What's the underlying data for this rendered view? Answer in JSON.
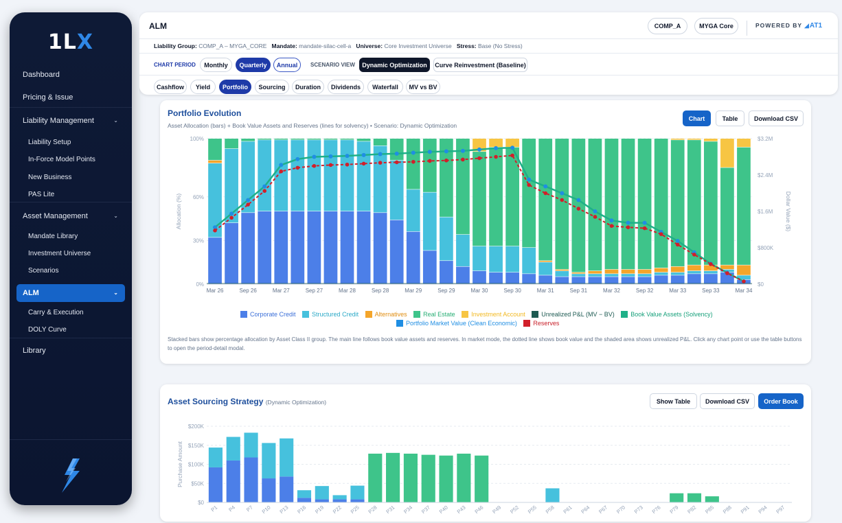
{
  "app": {
    "logo_main": "1L",
    "logo_accent": "X"
  },
  "sidebar": {
    "items": [
      {
        "label": "Dashboard"
      },
      {
        "label": "Pricing & Issue"
      },
      {
        "label": "Liability Management"
      },
      {
        "label": "Liability Setup"
      },
      {
        "label": "In-Force Model Points"
      },
      {
        "label": "New Business"
      },
      {
        "label": "PAS Lite"
      },
      {
        "label": "Asset Management"
      },
      {
        "label": "Mandate Library"
      },
      {
        "label": "Investment Universe"
      },
      {
        "label": "Scenarios"
      },
      {
        "label": "ALM"
      },
      {
        "label": "Carry & Execution"
      },
      {
        "label": "DOLY Curve"
      },
      {
        "label": "Library"
      }
    ],
    "chevron": "⌄"
  },
  "header": {
    "title": "ALM",
    "company_pill": "COMP_A",
    "product_pill": "MYGA Core",
    "powered_by": "POWERED BY",
    "brand": "AT1",
    "liability_group_label": "Liability Group:",
    "liability_group_value": "COMP_A – MYGA_CORE",
    "mandate_label": "Mandate:",
    "mandate_value": "mandate-silac-cell-a",
    "universe_label": "Universe:",
    "universe_value": "Core Investment Universe",
    "stress_label": "Stress:",
    "stress_value": "Base (No Stress)",
    "chart_period_label": "CHART PERIOD",
    "periods": [
      "Monthly",
      "Quarterly",
      "Annual"
    ],
    "active_period": "Quarterly",
    "scenario_view_label": "SCENARIO VIEW",
    "scenarios": [
      "Dynamic Optimization",
      "Curve Reinvestment (Baseline)"
    ],
    "active_scenario": "Dynamic Optimization",
    "tabs": [
      "Cashflow",
      "Yield",
      "Portfolio",
      "Sourcing",
      "Duration",
      "Dividends",
      "Waterfall",
      "MV vs BV"
    ],
    "active_tab": "Portfolio"
  },
  "portfolio_card": {
    "title": "Portfolio Evolution",
    "subtitle": "Asset Allocation (bars) + Book Value Assets and Reserves (lines for solvency) • Scenario: Dynamic Optimization",
    "buttons": {
      "chart": "Chart",
      "table": "Table",
      "csv": "Download CSV"
    },
    "y_left_title": "Allocation (%)",
    "y_right_title": "Dollar Value ($)",
    "note": "Stacked bars show percentage allocation by Asset Class II group. The main line follows book value assets and reserves. In market mode, the dotted line shows book value and the shaded area shows unrealized P&L. Click any chart point or use the table buttons to open the period-detail modal."
  },
  "sourcing_card": {
    "title": "Asset Sourcing Strategy",
    "subtitle": "(Dynamic Optimization)",
    "buttons": {
      "show_table": "Show Table",
      "csv": "Download CSV",
      "order_book": "Order Book"
    },
    "y_title": "Purchase Amount"
  },
  "colors": {
    "corporate": "#4c7fe8",
    "structured": "#46c1dd",
    "alternatives": "#f4a52a",
    "real_estate": "#3ec48a",
    "investment_account": "#f7c543",
    "unrealized": "#1d5a52",
    "book_value": "#1fb088",
    "portfolio_mv": "#1f8ee3",
    "reserves": "#d11f2a",
    "nav_active": "#1664c8",
    "sidebar_bg": "#0e1a36"
  },
  "chart_data": [
    {
      "type": "bar",
      "title": "Portfolio Evolution",
      "xlabel": "",
      "ylabel": "Allocation (%)",
      "y2label": "Dollar Value ($)",
      "ylim": [
        0,
        100
      ],
      "y2lim": [
        0,
        3200000
      ],
      "y_ticks": [
        "0%",
        "30%",
        "60%",
        "100%"
      ],
      "y_tick_values": [
        0,
        30,
        60,
        100
      ],
      "y2_ticks": [
        "$0",
        "$800K",
        "$1.6M",
        "$2.4M",
        "$3.2M"
      ],
      "y2_tick_values": [
        0,
        800000,
        1600000,
        2400000,
        3200000
      ],
      "x_tick_labels": [
        "Mar 26",
        "Sep 26",
        "Mar 27",
        "Sep 27",
        "Mar 28",
        "Sep 28",
        "Mar 29",
        "Sep 29",
        "Mar 30",
        "Sep 30",
        "Mar 31",
        "Sep 31",
        "Mar 32",
        "Sep 32",
        "Mar 33",
        "Sep 33",
        "Mar 34"
      ],
      "categories": [
        "Mar 26",
        "Jun 26",
        "Sep 26",
        "Dec 26",
        "Mar 27",
        "Jun 27",
        "Sep 27",
        "Dec 27",
        "Mar 28",
        "Jun 28",
        "Sep 28",
        "Dec 28",
        "Mar 29",
        "Jun 29",
        "Sep 29",
        "Dec 29",
        "Mar 30",
        "Jun 30",
        "Sep 30",
        "Dec 30",
        "Mar 31",
        "Jun 31",
        "Sep 31",
        "Dec 31",
        "Mar 32",
        "Jun 32",
        "Sep 32",
        "Dec 32",
        "Mar 33",
        "Jun 33",
        "Sep 33",
        "Dec 33",
        "Mar 34"
      ],
      "legend": [
        "Corporate Credit",
        "Structured Credit",
        "Alternatives",
        "Real Estate",
        "Investment Account",
        "Unrealized P&L (MV − BV)",
        "Book Value Assets (Solvency)",
        "Portfolio Market Value (Clean Economic)",
        "Reserves"
      ],
      "series": [
        {
          "name": "Corporate Credit",
          "values": [
            32,
            42,
            49,
            50,
            50,
            50,
            50,
            50,
            50,
            50,
            49,
            44,
            36,
            23,
            16,
            12,
            9,
            8,
            8,
            7,
            6,
            5,
            5,
            5,
            5,
            5,
            5,
            6,
            6,
            7,
            7,
            8,
            3
          ]
        },
        {
          "name": "Structured Credit",
          "values": [
            51,
            51,
            49,
            49,
            49,
            49,
            49,
            49,
            49,
            48,
            46,
            41,
            29,
            40,
            30,
            22,
            17,
            18,
            18,
            18,
            9,
            4,
            2,
            2,
            2,
            2,
            2,
            2,
            2,
            2,
            2,
            2,
            3
          ]
        },
        {
          "name": "Alternatives",
          "values": [
            2,
            0,
            0,
            0,
            0,
            0,
            0,
            0,
            0,
            0,
            0,
            0,
            0,
            0,
            0,
            0,
            0,
            0,
            0,
            0,
            1,
            1,
            1,
            2,
            3,
            3,
            3,
            3,
            4,
            4,
            4,
            3,
            7
          ]
        },
        {
          "name": "Real Estate",
          "values": [
            15,
            7,
            2,
            1,
            1,
            1,
            1,
            1,
            1,
            2,
            5,
            15,
            35,
            37,
            54,
            66,
            65,
            68,
            68,
            75,
            84,
            90,
            92,
            91,
            90,
            90,
            90,
            89,
            87,
            86,
            85,
            67,
            81
          ]
        },
        {
          "name": "Investment Account",
          "values": [
            0,
            0,
            0,
            0,
            0,
            0,
            0,
            0,
            0,
            0,
            0,
            0,
            0,
            0,
            0,
            0,
            9,
            6,
            6,
            0,
            0,
            0,
            0,
            0,
            0,
            0,
            0,
            0,
            1,
            1,
            2,
            20,
            6
          ]
        },
        {
          "name": "Book Value Assets (Solvency)",
          "values": [
            1250000,
            1550000,
            1850000,
            2150000,
            2620000,
            2750000,
            2800000,
            2810000,
            2820000,
            2840000,
            2860000,
            2870000,
            2890000,
            2910000,
            2920000,
            2930000,
            2960000,
            2990000,
            3000000,
            2300000,
            2150000,
            2000000,
            1850000,
            1600000,
            1400000,
            1350000,
            1350000,
            1150000,
            950000,
            700000,
            450000,
            250000,
            60000
          ]
        },
        {
          "name": "Portfolio Market Value (Clean Economic)",
          "values": [
            1250000,
            1550000,
            1850000,
            2150000,
            2620000,
            2750000,
            2800000,
            2810000,
            2820000,
            2840000,
            2860000,
            2870000,
            2890000,
            2910000,
            2920000,
            2930000,
            2960000,
            2990000,
            3000000,
            2300000,
            2150000,
            2000000,
            1850000,
            1600000,
            1400000,
            1350000,
            1350000,
            1150000,
            950000,
            700000,
            450000,
            250000,
            60000
          ]
        },
        {
          "name": "Reserves",
          "values": [
            1180000,
            1460000,
            1750000,
            2050000,
            2480000,
            2560000,
            2600000,
            2620000,
            2630000,
            2650000,
            2670000,
            2680000,
            2690000,
            2710000,
            2720000,
            2740000,
            2770000,
            2800000,
            2830000,
            2180000,
            2000000,
            1850000,
            1660000,
            1480000,
            1280000,
            1250000,
            1230000,
            1100000,
            870000,
            650000,
            440000,
            240000,
            60000
          ]
        }
      ]
    },
    {
      "type": "bar",
      "title": "Asset Sourcing Strategy",
      "ylabel": "Purchase Amount",
      "ylim": [
        0,
        200000
      ],
      "y_ticks": [
        "$0",
        "$50K",
        "$100K",
        "$150K",
        "$200K"
      ],
      "y_tick_values": [
        0,
        50000,
        100000,
        150000,
        200000
      ],
      "x_tick_labels": [
        "P1",
        "P4",
        "P7",
        "P10",
        "P13",
        "P16",
        "P19",
        "P22",
        "P25",
        "P28",
        "P31",
        "P34",
        "P37",
        "P40",
        "P43",
        "P46",
        "P49",
        "P52",
        "P55",
        "P58",
        "P61",
        "P64",
        "P67",
        "P70",
        "P73",
        "P76",
        "P79",
        "P82",
        "P85",
        "P88",
        "P91",
        "P94",
        "P97"
      ],
      "series": [
        {
          "name": "Corporate Credit",
          "values": [
            92000,
            110000,
            118000,
            63000,
            68000,
            12000,
            8000,
            8000,
            8000,
            0,
            0,
            0,
            0,
            0,
            0,
            0,
            0,
            0,
            0,
            0,
            0,
            0,
            0,
            0,
            0,
            0,
            0,
            0,
            0,
            0,
            0,
            0,
            0
          ]
        },
        {
          "name": "Structured Credit",
          "values": [
            52000,
            62000,
            65000,
            93000,
            100000,
            20000,
            35000,
            11000,
            36000,
            0,
            0,
            0,
            0,
            0,
            0,
            0,
            0,
            0,
            0,
            37000,
            0,
            0,
            0,
            0,
            0,
            0,
            0,
            0,
            0,
            0,
            0,
            0,
            0
          ]
        },
        {
          "name": "Real Estate",
          "values": [
            0,
            0,
            0,
            0,
            0,
            0,
            0,
            0,
            0,
            128000,
            130000,
            128000,
            125000,
            123000,
            128000,
            123000,
            0,
            0,
            0,
            0,
            0,
            0,
            0,
            0,
            0,
            0,
            24000,
            24000,
            16000,
            0,
            0,
            0,
            0
          ]
        }
      ]
    }
  ]
}
